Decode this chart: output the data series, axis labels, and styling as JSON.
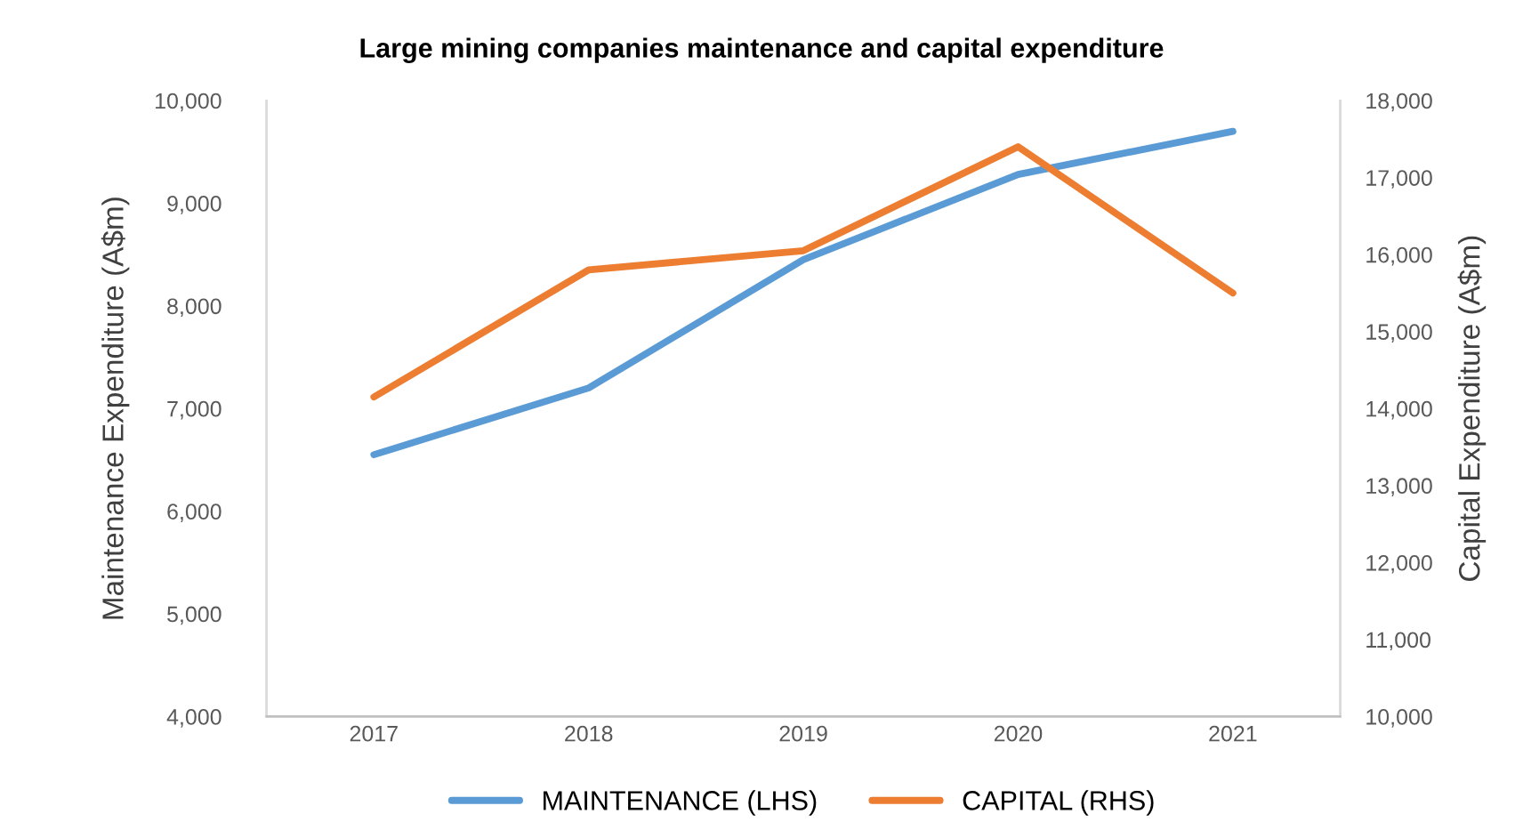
{
  "chart_data": {
    "type": "line",
    "title": "Large mining companies maintenance and capital expenditure",
    "ylabel": "Maintenance Expenditure (A$m)",
    "y2label": "Capital Expenditure (A$m)",
    "categories": [
      "2017",
      "2018",
      "2019",
      "2020",
      "2021"
    ],
    "series": [
      {
        "name": "MAINTENANCE (LHS)",
        "color": "#5b9bd5",
        "values": [
          6550,
          7200,
          8450,
          9280,
          9700
        ]
      },
      {
        "name": "CAPITAL (RHS)",
        "color": "#ed7d31",
        "axis": "y2",
        "values": [
          14150,
          15800,
          16050,
          17400,
          15500
        ]
      }
    ],
    "ylim": [
      4000,
      10000
    ],
    "yticks": [
      {
        "value": 4000,
        "label": "4,000"
      },
      {
        "value": 5000,
        "label": "5,000"
      },
      {
        "value": 6000,
        "label": "6,000"
      },
      {
        "value": 7000,
        "label": "7,000"
      },
      {
        "value": 8000,
        "label": "8,000"
      },
      {
        "value": 9000,
        "label": "9,000"
      },
      {
        "value": 10000,
        "label": "10,000"
      }
    ],
    "y2lim": [
      10000,
      18000
    ],
    "y2ticks": [
      {
        "value": 10000,
        "label": "10,000"
      },
      {
        "value": 11000,
        "label": "11,000"
      },
      {
        "value": 12000,
        "label": "12,000"
      },
      {
        "value": 13000,
        "label": "13,000"
      },
      {
        "value": 14000,
        "label": "14,000"
      },
      {
        "value": 15000,
        "label": "15,000"
      },
      {
        "value": 16000,
        "label": "16,000"
      },
      {
        "value": 17000,
        "label": "17,000"
      },
      {
        "value": 18000,
        "label": "18,000"
      }
    ],
    "grid": false,
    "legend": "bottom",
    "line_style": "solid",
    "marker": "none"
  }
}
